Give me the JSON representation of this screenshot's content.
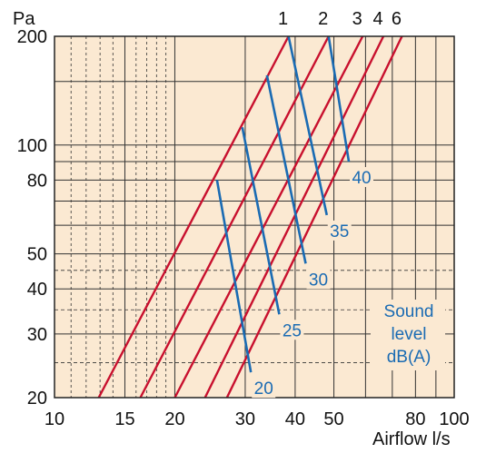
{
  "chart_data": {
    "type": "line",
    "xlabel": "Airflow l/s",
    "ylabel": "Pa",
    "x_scale": "log",
    "y_scale": "log",
    "xlim": [
      10,
      100
    ],
    "ylim": [
      20,
      200
    ],
    "x_ticks": [
      10,
      15,
      20,
      30,
      40,
      50,
      80,
      100
    ],
    "y_ticks": [
      20,
      30,
      40,
      50,
      80,
      100,
      200
    ],
    "grid": true,
    "colors": {
      "background": "#fbe9d2",
      "grid": "#333333",
      "pressure_lines": "#c8102e",
      "sound_lines": "#1a6bb3"
    },
    "series": [
      {
        "name": "1",
        "points": [
          [
            12.9,
            20
          ],
          [
            38.5,
            200
          ]
        ]
      },
      {
        "name": "2",
        "points": [
          [
            16.4,
            20
          ],
          [
            48.5,
            200
          ]
        ]
      },
      {
        "name": "3",
        "points": [
          [
            20.0,
            20
          ],
          [
            59.0,
            200
          ]
        ]
      },
      {
        "name": "4",
        "points": [
          [
            23.8,
            20
          ],
          [
            66.5,
            200
          ]
        ]
      },
      {
        "name": "6",
        "points": [
          [
            27.0,
            20
          ],
          [
            74.0,
            200
          ]
        ]
      }
    ],
    "sound_lines": [
      {
        "label": "20",
        "points": [
          [
            25.5,
            80
          ],
          [
            31.0,
            23.5
          ]
        ]
      },
      {
        "label": "25",
        "points": [
          [
            29.5,
            112
          ],
          [
            36.5,
            34
          ]
        ]
      },
      {
        "label": "30",
        "points": [
          [
            34.0,
            156
          ],
          [
            42.5,
            47
          ]
        ]
      },
      {
        "label": "35",
        "points": [
          [
            38.5,
            200
          ],
          [
            48.0,
            64
          ]
        ]
      },
      {
        "label": "40",
        "points": [
          [
            48.5,
            200
          ],
          [
            54.5,
            90
          ]
        ]
      }
    ],
    "annotation": [
      "Sound",
      "level",
      "dB(A)"
    ]
  }
}
